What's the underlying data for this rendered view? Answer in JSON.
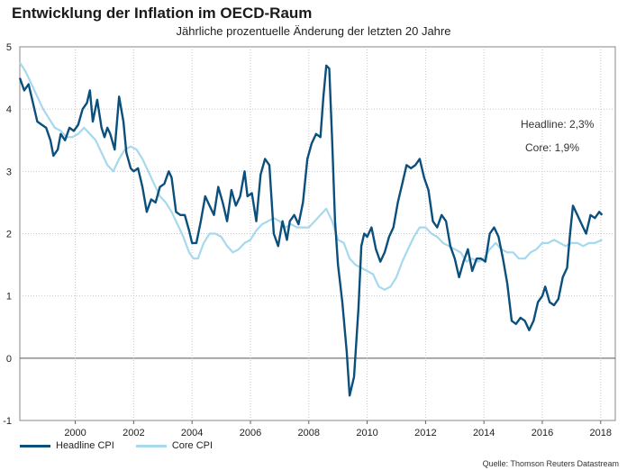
{
  "title": "Entwicklung der Inflation im OECD-Raum",
  "subtitle": "Jährliche prozentuelle Änderung der letzten 20 Jahre",
  "annotations": {
    "headline": "Headline: 2,3%",
    "core": "Core: 1,9%"
  },
  "source": "Quelle: Thomson Reuters Datastream",
  "colors": {
    "headline": "#0b4f7c",
    "core": "#a6d8ee",
    "grid": "#c8c8c8",
    "zero": "#555555"
  },
  "chart_data": {
    "type": "line",
    "title": "Entwicklung der Inflation im OECD-Raum",
    "xlabel": "",
    "ylabel": "",
    "xlim": [
      1998.1,
      2018.5
    ],
    "ylim": [
      -1,
      5
    ],
    "y_ticks": [
      -1,
      0,
      1,
      2,
      3,
      4,
      5
    ],
    "x_ticks": [
      2000,
      2002,
      2004,
      2006,
      2008,
      2010,
      2012,
      2014,
      2016,
      2018
    ],
    "grid": true,
    "legend": "bottom-left",
    "series": [
      {
        "name": "Headline CPI",
        "color": "#0b4f7c",
        "points": [
          [
            1998.1,
            4.5
          ],
          [
            1998.25,
            4.3
          ],
          [
            1998.4,
            4.4
          ],
          [
            1998.55,
            4.1
          ],
          [
            1998.7,
            3.8
          ],
          [
            1998.85,
            3.75
          ],
          [
            1999.0,
            3.7
          ],
          [
            1999.15,
            3.5
          ],
          [
            1999.25,
            3.25
          ],
          [
            1999.4,
            3.35
          ],
          [
            1999.5,
            3.6
          ],
          [
            1999.65,
            3.5
          ],
          [
            1999.8,
            3.7
          ],
          [
            1999.95,
            3.65
          ],
          [
            2000.1,
            3.75
          ],
          [
            2000.25,
            4.0
          ],
          [
            2000.4,
            4.1
          ],
          [
            2000.5,
            4.3
          ],
          [
            2000.6,
            3.8
          ],
          [
            2000.75,
            4.15
          ],
          [
            2000.9,
            3.7
          ],
          [
            2001.0,
            3.55
          ],
          [
            2001.1,
            3.7
          ],
          [
            2001.2,
            3.6
          ],
          [
            2001.35,
            3.35
          ],
          [
            2001.5,
            4.2
          ],
          [
            2001.65,
            3.8
          ],
          [
            2001.75,
            3.3
          ],
          [
            2001.9,
            3.05
          ],
          [
            2002.0,
            3.0
          ],
          [
            2002.15,
            3.05
          ],
          [
            2002.3,
            2.75
          ],
          [
            2002.45,
            2.35
          ],
          [
            2002.6,
            2.55
          ],
          [
            2002.75,
            2.5
          ],
          [
            2002.9,
            2.75
          ],
          [
            2003.05,
            2.8
          ],
          [
            2003.2,
            3.0
          ],
          [
            2003.3,
            2.9
          ],
          [
            2003.45,
            2.35
          ],
          [
            2003.6,
            2.3
          ],
          [
            2003.75,
            2.3
          ],
          [
            2003.9,
            2.05
          ],
          [
            2004.0,
            1.85
          ],
          [
            2004.15,
            1.85
          ],
          [
            2004.3,
            2.2
          ],
          [
            2004.45,
            2.6
          ],
          [
            2004.6,
            2.45
          ],
          [
            2004.75,
            2.3
          ],
          [
            2004.9,
            2.75
          ],
          [
            2005.05,
            2.5
          ],
          [
            2005.2,
            2.2
          ],
          [
            2005.35,
            2.7
          ],
          [
            2005.5,
            2.45
          ],
          [
            2005.65,
            2.6
          ],
          [
            2005.8,
            3.0
          ],
          [
            2005.9,
            2.6
          ],
          [
            2006.05,
            2.65
          ],
          [
            2006.2,
            2.2
          ],
          [
            2006.35,
            2.95
          ],
          [
            2006.5,
            3.2
          ],
          [
            2006.65,
            3.1
          ],
          [
            2006.8,
            2.0
          ],
          [
            2006.95,
            1.8
          ],
          [
            2007.1,
            2.2
          ],
          [
            2007.25,
            1.9
          ],
          [
            2007.35,
            2.2
          ],
          [
            2007.5,
            2.3
          ],
          [
            2007.65,
            2.15
          ],
          [
            2007.8,
            2.5
          ],
          [
            2007.95,
            3.2
          ],
          [
            2008.1,
            3.45
          ],
          [
            2008.25,
            3.6
          ],
          [
            2008.4,
            3.55
          ],
          [
            2008.5,
            4.2
          ],
          [
            2008.6,
            4.7
          ],
          [
            2008.7,
            4.65
          ],
          [
            2008.8,
            3.5
          ],
          [
            2008.9,
            2.2
          ],
          [
            2009.0,
            1.5
          ],
          [
            2009.15,
            0.9
          ],
          [
            2009.3,
            0.1
          ],
          [
            2009.4,
            -0.6
          ],
          [
            2009.55,
            -0.3
          ],
          [
            2009.7,
            0.8
          ],
          [
            2009.8,
            1.8
          ],
          [
            2009.9,
            2.0
          ],
          [
            2010.0,
            1.95
          ],
          [
            2010.15,
            2.1
          ],
          [
            2010.3,
            1.75
          ],
          [
            2010.45,
            1.55
          ],
          [
            2010.6,
            1.7
          ],
          [
            2010.75,
            1.95
          ],
          [
            2010.9,
            2.1
          ],
          [
            2011.05,
            2.5
          ],
          [
            2011.2,
            2.8
          ],
          [
            2011.35,
            3.1
          ],
          [
            2011.5,
            3.05
          ],
          [
            2011.65,
            3.1
          ],
          [
            2011.8,
            3.2
          ],
          [
            2011.95,
            2.9
          ],
          [
            2012.1,
            2.7
          ],
          [
            2012.25,
            2.2
          ],
          [
            2012.4,
            2.1
          ],
          [
            2012.55,
            2.3
          ],
          [
            2012.7,
            2.2
          ],
          [
            2012.85,
            1.8
          ],
          [
            2013.0,
            1.6
          ],
          [
            2013.15,
            1.3
          ],
          [
            2013.3,
            1.55
          ],
          [
            2013.45,
            1.75
          ],
          [
            2013.6,
            1.4
          ],
          [
            2013.75,
            1.6
          ],
          [
            2013.9,
            1.6
          ],
          [
            2014.05,
            1.55
          ],
          [
            2014.2,
            2.0
          ],
          [
            2014.35,
            2.1
          ],
          [
            2014.5,
            1.95
          ],
          [
            2014.65,
            1.6
          ],
          [
            2014.8,
            1.2
          ],
          [
            2014.95,
            0.6
          ],
          [
            2015.1,
            0.55
          ],
          [
            2015.25,
            0.65
          ],
          [
            2015.4,
            0.6
          ],
          [
            2015.55,
            0.45
          ],
          [
            2015.7,
            0.6
          ],
          [
            2015.85,
            0.9
          ],
          [
            2016.0,
            1.0
          ],
          [
            2016.1,
            1.15
          ],
          [
            2016.25,
            0.9
          ],
          [
            2016.4,
            0.85
          ],
          [
            2016.55,
            0.95
          ],
          [
            2016.7,
            1.3
          ],
          [
            2016.85,
            1.45
          ],
          [
            2016.95,
            2.0
          ],
          [
            2017.05,
            2.45
          ],
          [
            2017.2,
            2.3
          ],
          [
            2017.35,
            2.15
          ],
          [
            2017.5,
            2.0
          ],
          [
            2017.65,
            2.3
          ],
          [
            2017.8,
            2.25
          ],
          [
            2017.95,
            2.35
          ],
          [
            2018.05,
            2.3
          ]
        ]
      },
      {
        "name": "Core CPI",
        "color": "#a6d8ee",
        "points": [
          [
            1998.1,
            4.75
          ],
          [
            1998.3,
            4.6
          ],
          [
            1998.5,
            4.4
          ],
          [
            1998.7,
            4.2
          ],
          [
            1998.9,
            4.0
          ],
          [
            1999.1,
            3.85
          ],
          [
            1999.3,
            3.7
          ],
          [
            1999.5,
            3.65
          ],
          [
            1999.7,
            3.55
          ],
          [
            1999.9,
            3.55
          ],
          [
            2000.1,
            3.6
          ],
          [
            2000.3,
            3.7
          ],
          [
            2000.5,
            3.6
          ],
          [
            2000.7,
            3.5
          ],
          [
            2000.9,
            3.3
          ],
          [
            2001.1,
            3.1
          ],
          [
            2001.3,
            3.0
          ],
          [
            2001.5,
            3.2
          ],
          [
            2001.7,
            3.35
          ],
          [
            2001.9,
            3.4
          ],
          [
            2002.1,
            3.35
          ],
          [
            2002.3,
            3.2
          ],
          [
            2002.5,
            3.0
          ],
          [
            2002.7,
            2.8
          ],
          [
            2002.9,
            2.6
          ],
          [
            2003.1,
            2.5
          ],
          [
            2003.3,
            2.35
          ],
          [
            2003.5,
            2.15
          ],
          [
            2003.7,
            1.95
          ],
          [
            2003.9,
            1.7
          ],
          [
            2004.05,
            1.6
          ],
          [
            2004.2,
            1.6
          ],
          [
            2004.4,
            1.85
          ],
          [
            2004.6,
            2.0
          ],
          [
            2004.8,
            2.0
          ],
          [
            2005.0,
            1.95
          ],
          [
            2005.2,
            1.8
          ],
          [
            2005.4,
            1.7
          ],
          [
            2005.6,
            1.75
          ],
          [
            2005.8,
            1.85
          ],
          [
            2006.0,
            1.9
          ],
          [
            2006.2,
            2.05
          ],
          [
            2006.4,
            2.15
          ],
          [
            2006.6,
            2.2
          ],
          [
            2006.8,
            2.25
          ],
          [
            2007.0,
            2.2
          ],
          [
            2007.2,
            2.1
          ],
          [
            2007.4,
            2.15
          ],
          [
            2007.6,
            2.1
          ],
          [
            2007.8,
            2.1
          ],
          [
            2008.0,
            2.1
          ],
          [
            2008.2,
            2.2
          ],
          [
            2008.4,
            2.3
          ],
          [
            2008.6,
            2.4
          ],
          [
            2008.8,
            2.2
          ],
          [
            2009.0,
            1.9
          ],
          [
            2009.2,
            1.85
          ],
          [
            2009.4,
            1.6
          ],
          [
            2009.6,
            1.5
          ],
          [
            2009.8,
            1.45
          ],
          [
            2010.0,
            1.4
          ],
          [
            2010.2,
            1.35
          ],
          [
            2010.4,
            1.15
          ],
          [
            2010.6,
            1.1
          ],
          [
            2010.8,
            1.15
          ],
          [
            2011.0,
            1.3
          ],
          [
            2011.2,
            1.55
          ],
          [
            2011.4,
            1.75
          ],
          [
            2011.6,
            1.95
          ],
          [
            2011.8,
            2.1
          ],
          [
            2012.0,
            2.1
          ],
          [
            2012.2,
            2.0
          ],
          [
            2012.4,
            1.95
          ],
          [
            2012.6,
            1.85
          ],
          [
            2012.8,
            1.8
          ],
          [
            2013.0,
            1.75
          ],
          [
            2013.2,
            1.7
          ],
          [
            2013.4,
            1.55
          ],
          [
            2013.6,
            1.6
          ],
          [
            2013.8,
            1.55
          ],
          [
            2014.0,
            1.6
          ],
          [
            2014.2,
            1.75
          ],
          [
            2014.4,
            1.85
          ],
          [
            2014.6,
            1.75
          ],
          [
            2014.8,
            1.7
          ],
          [
            2015.0,
            1.7
          ],
          [
            2015.2,
            1.6
          ],
          [
            2015.4,
            1.6
          ],
          [
            2015.6,
            1.7
          ],
          [
            2015.8,
            1.75
          ],
          [
            2016.0,
            1.85
          ],
          [
            2016.2,
            1.85
          ],
          [
            2016.4,
            1.9
          ],
          [
            2016.6,
            1.85
          ],
          [
            2016.8,
            1.8
          ],
          [
            2017.0,
            1.85
          ],
          [
            2017.2,
            1.85
          ],
          [
            2017.4,
            1.8
          ],
          [
            2017.6,
            1.85
          ],
          [
            2017.8,
            1.85
          ],
          [
            2018.05,
            1.9
          ]
        ]
      }
    ]
  }
}
